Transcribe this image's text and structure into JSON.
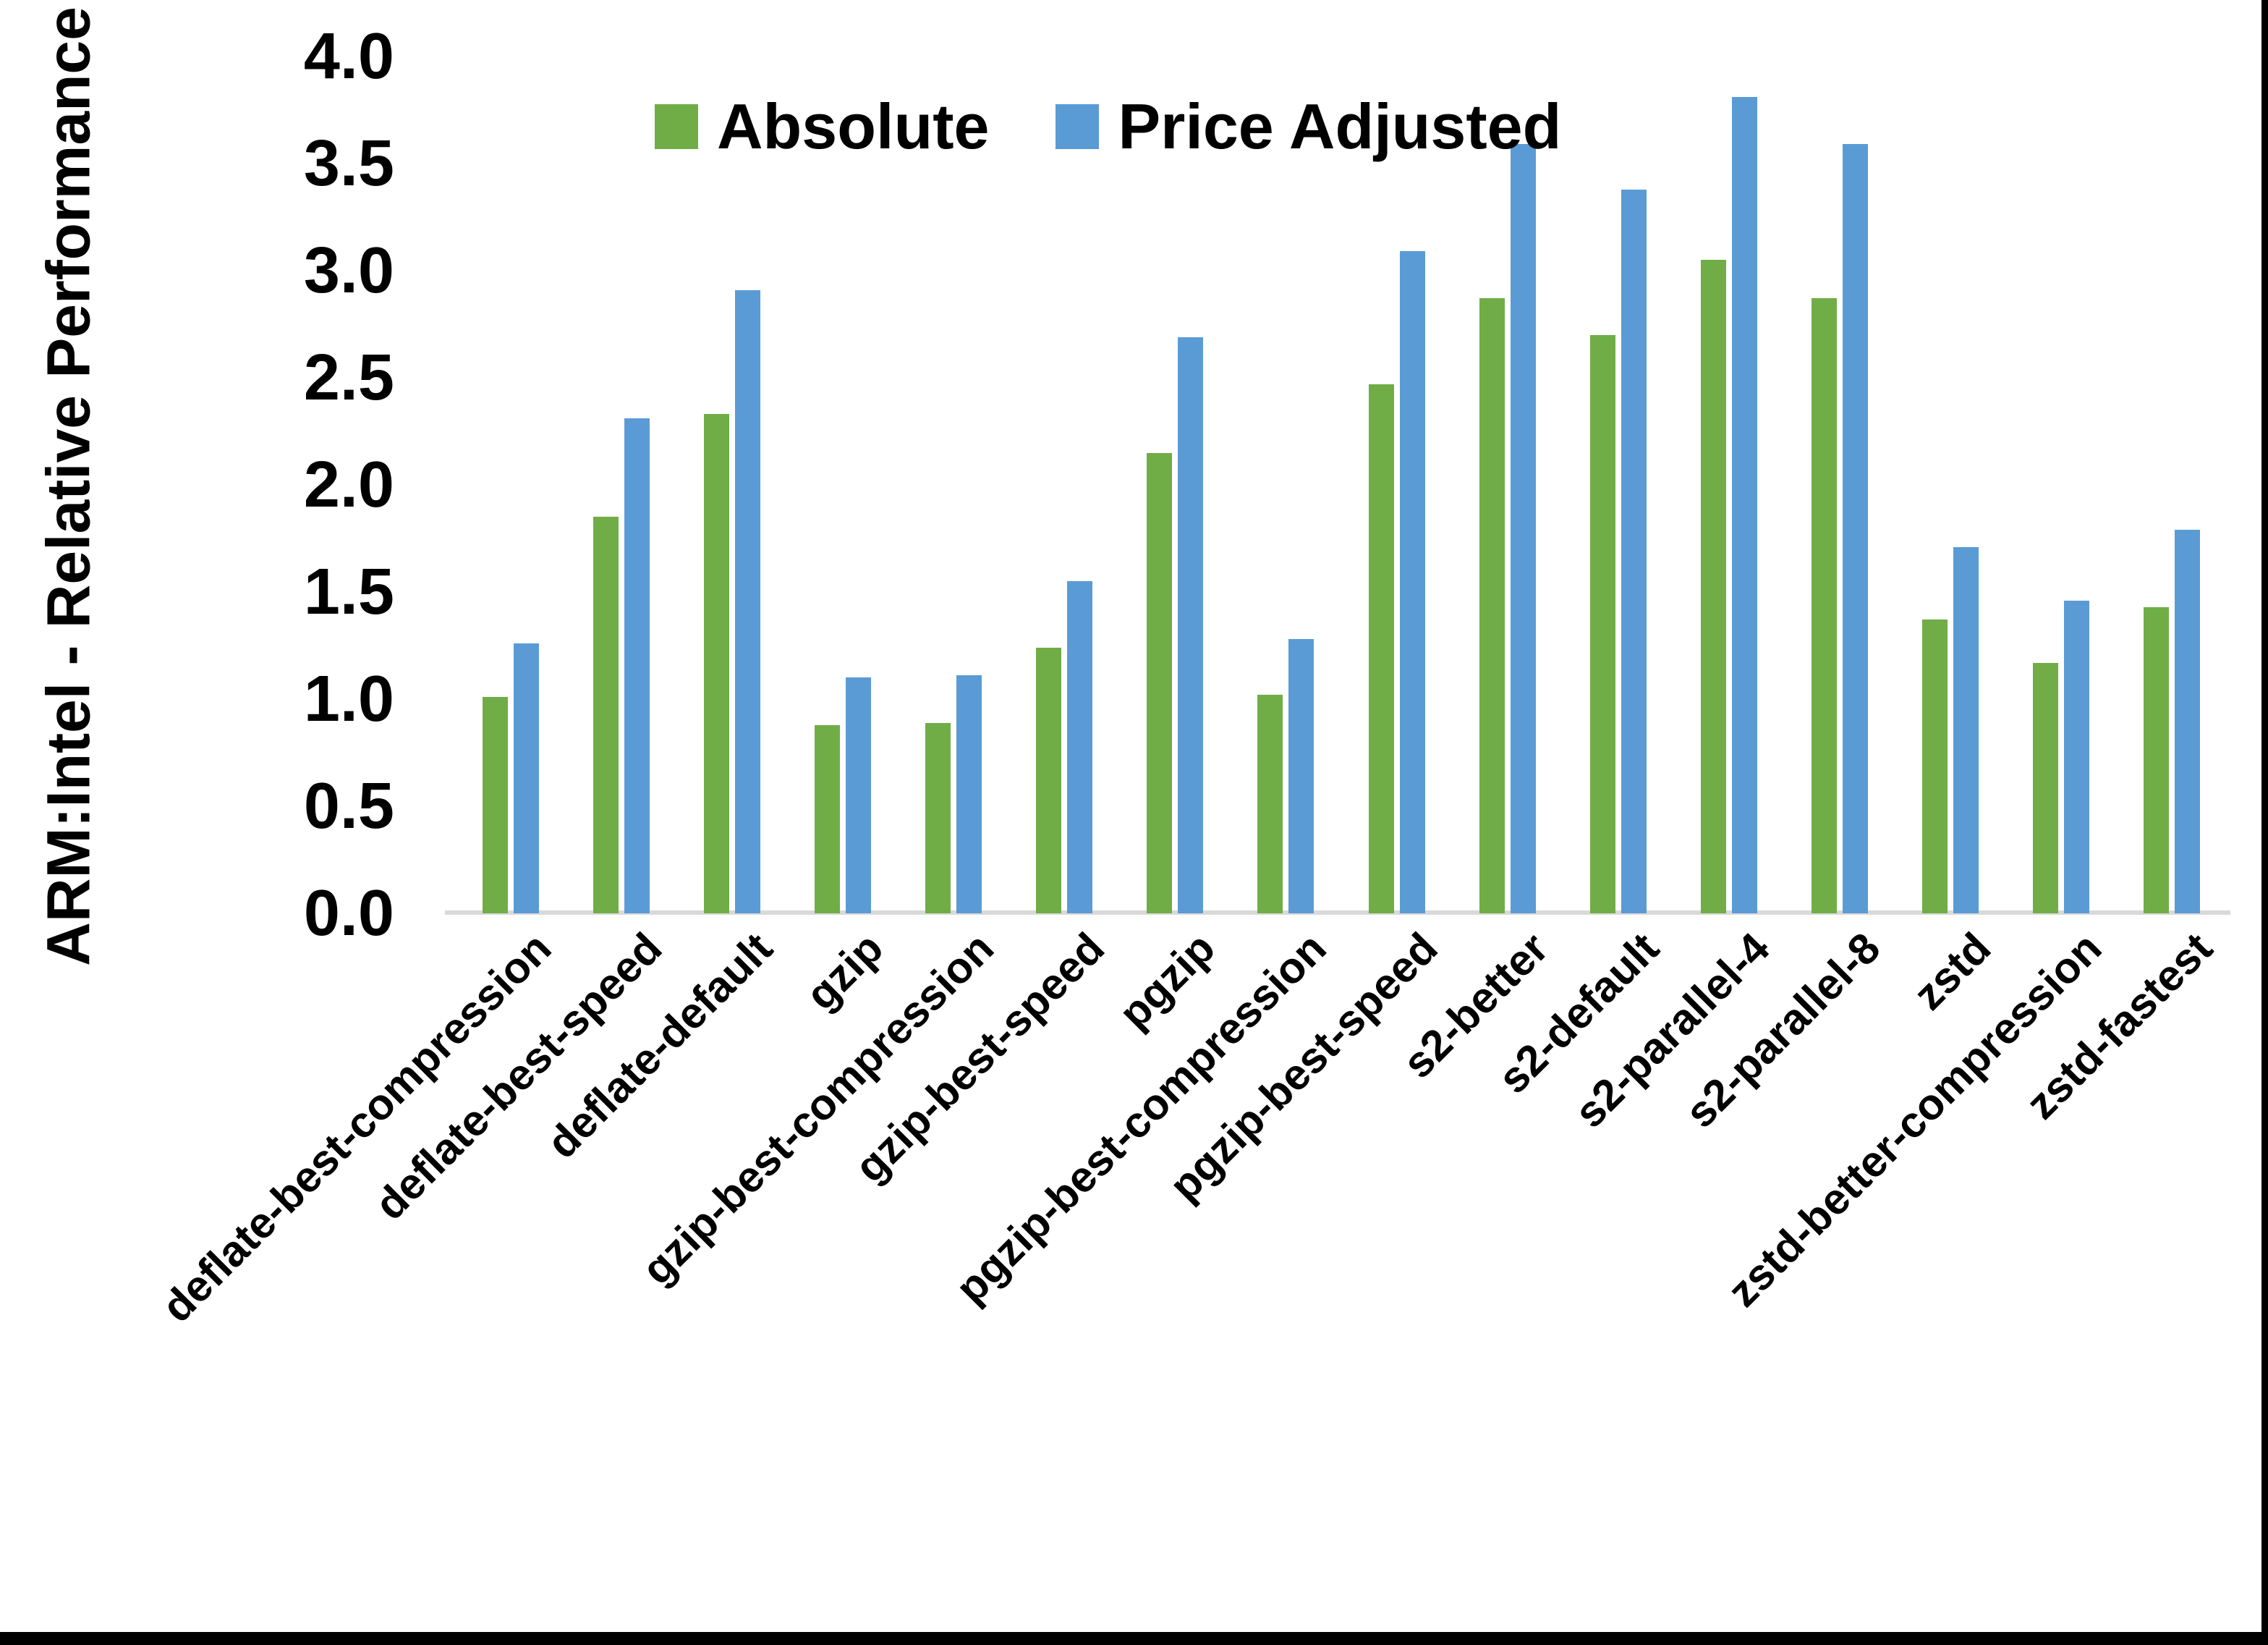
{
  "figure": {
    "background_color": "#ffffff",
    "frame_border_color": "#000000",
    "axis_line_color": "#D9D9D9",
    "text_color": "#000000"
  },
  "legend": {
    "absolute_label": "Absolute",
    "price_adjusted_label": "Price Adjusted"
  },
  "chart_data": {
    "type": "bar",
    "title": "",
    "xlabel": "",
    "ylabel": "ARM:Intel - Relative Performance",
    "ylim": [
      0.0,
      4.0
    ],
    "ytick_step": 0.5,
    "yticks": [
      "0.0",
      "0.5",
      "1.0",
      "1.5",
      "2.0",
      "2.5",
      "3.0",
      "3.5",
      "4.0"
    ],
    "grid": false,
    "legend_position": "top-center",
    "categories": [
      "deflate-best-compression",
      "deflate-best-speed",
      "deflate-default",
      "gzip",
      "gzip-best-compression",
      "gzip-best-speed",
      "pgzip",
      "pgzip-best-compression",
      "pgzip-best-speed",
      "s2-better",
      "s2-default",
      "s2-parallel-4",
      "s2-parallel-8",
      "zstd",
      "zstd-better-compression",
      "zstd-fastest"
    ],
    "series": [
      {
        "name": "Absolute",
        "color": "#70AD47",
        "values": [
          1.01,
          1.85,
          2.33,
          0.88,
          0.89,
          1.24,
          2.15,
          1.02,
          2.47,
          2.87,
          2.7,
          3.05,
          2.87,
          1.37,
          1.17,
          1.43
        ]
      },
      {
        "name": "Price Adjusted",
        "color": "#5B9BD5",
        "values": [
          1.26,
          2.31,
          2.91,
          1.1,
          1.11,
          1.55,
          2.69,
          1.28,
          3.09,
          3.59,
          3.38,
          3.81,
          3.59,
          1.71,
          1.46,
          1.79
        ]
      }
    ]
  }
}
